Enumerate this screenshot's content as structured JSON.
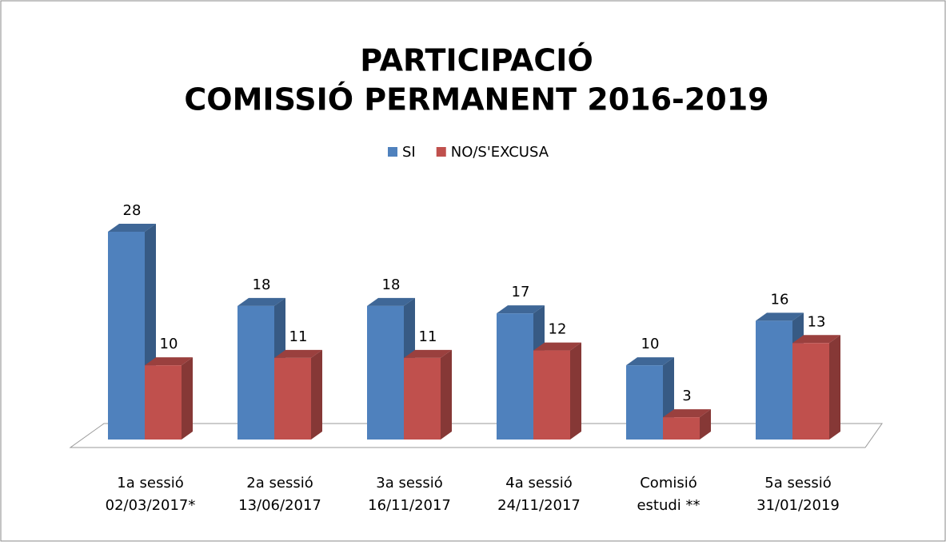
{
  "chart_data": {
    "type": "bar3d",
    "title": [
      "PARTICIPACIÓ",
      "COMISSIÓ PERMANENT 2016-2019"
    ],
    "categories": [
      [
        "1a sessió",
        "02/03/2017*"
      ],
      [
        "2a sessió",
        "13/06/2017"
      ],
      [
        "3a sessió",
        "16/11/2017"
      ],
      [
        "4a sessió",
        "24/11/2017"
      ],
      [
        "Comisió",
        "estudi **"
      ],
      [
        "5a sessió",
        "31/01/2019"
      ]
    ],
    "series": [
      {
        "name": "SI",
        "color": "#4f81bd",
        "values": [
          28,
          18,
          18,
          17,
          10,
          16
        ]
      },
      {
        "name": "NO/S'EXCUSA",
        "color": "#c0504d",
        "values": [
          10,
          11,
          11,
          12,
          3,
          13
        ]
      }
    ],
    "legend": "top"
  }
}
